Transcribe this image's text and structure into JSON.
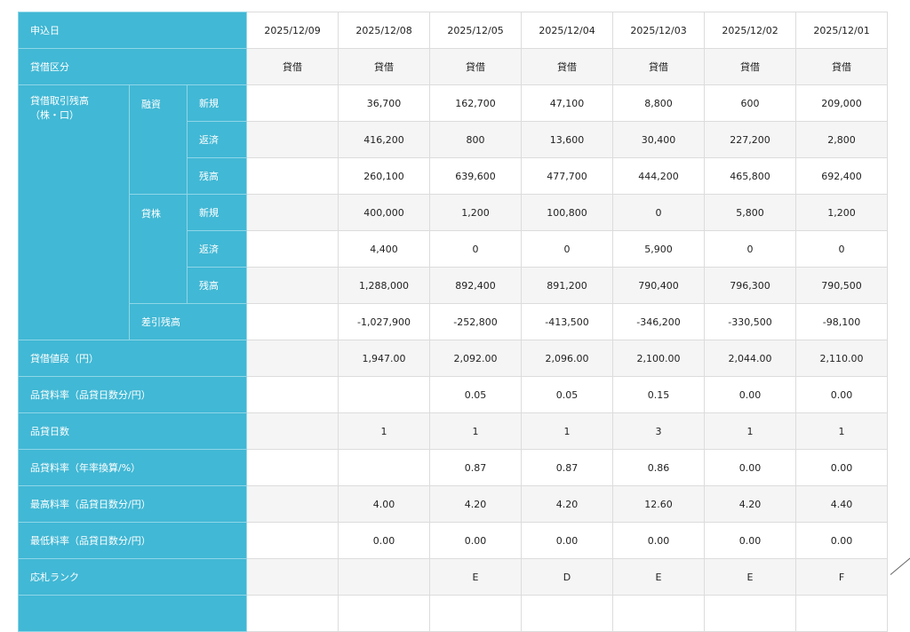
{
  "colors": {
    "header_bg": "#41b8d5",
    "alt_row_bg": "#f5f5f5"
  },
  "dates": [
    "2025/12/09",
    "2025/12/08",
    "2025/12/05",
    "2025/12/04",
    "2025/12/03",
    "2025/12/02",
    "2025/12/01"
  ],
  "labels": {
    "date": "申込日",
    "kubun": "貸借区分",
    "balance": "貸借取引残高\n（株・口）",
    "yushi": "融資",
    "kashikabu": "貸株",
    "new": "新規",
    "repay": "返済",
    "remain": "残高",
    "net": "差引残高",
    "price": "貸借値段（円）",
    "fee_rate": "品貸料率（品貸日数分/円）",
    "fee_days": "品貸日数",
    "fee_annual": "品貸料率（年率換算/%）",
    "max_rate": "最高料率（品貸日数分/円）",
    "min_rate": "最低料率（品貸日数分/円）",
    "rank": "応札ランク"
  },
  "rows": {
    "kubun": [
      "貸借",
      "貸借",
      "貸借",
      "貸借",
      "貸借",
      "貸借",
      "貸借"
    ],
    "yushi_new": [
      "",
      "36,700",
      "162,700",
      "47,100",
      "8,800",
      "600",
      "209,000"
    ],
    "yushi_repay": [
      "",
      "416,200",
      "800",
      "13,600",
      "30,400",
      "227,200",
      "2,800"
    ],
    "yushi_remain": [
      "",
      "260,100",
      "639,600",
      "477,700",
      "444,200",
      "465,800",
      "692,400"
    ],
    "kabu_new": [
      "",
      "400,000",
      "1,200",
      "100,800",
      "0",
      "5,800",
      "1,200"
    ],
    "kabu_repay": [
      "",
      "4,400",
      "0",
      "0",
      "5,900",
      "0",
      "0"
    ],
    "kabu_remain": [
      "",
      "1,288,000",
      "892,400",
      "891,200",
      "790,400",
      "796,300",
      "790,500"
    ],
    "net": [
      "",
      "-1,027,900",
      "-252,800",
      "-413,500",
      "-346,200",
      "-330,500",
      "-98,100"
    ],
    "price": [
      "",
      "1,947.00",
      "2,092.00",
      "2,096.00",
      "2,100.00",
      "2,044.00",
      "2,110.00"
    ],
    "fee_rate": [
      "",
      "",
      "0.05",
      "0.05",
      "0.15",
      "0.00",
      "0.00"
    ],
    "fee_days": [
      "",
      "1",
      "1",
      "1",
      "3",
      "1",
      "1"
    ],
    "fee_annual": [
      "",
      "",
      "0.87",
      "0.87",
      "0.86",
      "0.00",
      "0.00"
    ],
    "max_rate": [
      "",
      "4.00",
      "4.20",
      "4.20",
      "12.60",
      "4.20",
      "4.40"
    ],
    "min_rate": [
      "",
      "0.00",
      "0.00",
      "0.00",
      "0.00",
      "0.00",
      "0.00"
    ],
    "rank": [
      "",
      "",
      "E",
      "D",
      "E",
      "E",
      "F"
    ]
  }
}
